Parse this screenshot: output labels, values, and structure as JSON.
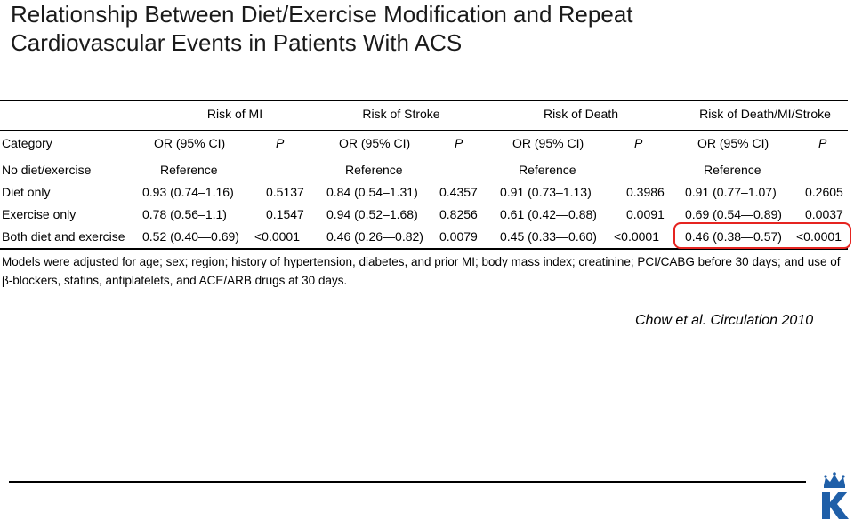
{
  "slide": {
    "title_line1": "Relationship Between Diet/Exercise Modification and Repeat",
    "title_line2": "Cardiovascular Events in Patients With ACS"
  },
  "table": {
    "group_headers": [
      "Risk of MI",
      "Risk of Stroke",
      "Risk of Death",
      "Risk of Death/MI/Stroke"
    ],
    "column_headers": {
      "category": "Category",
      "or": "OR (95% CI)",
      "p": "P"
    },
    "rows": [
      {
        "category": "No diet/exercise",
        "cells": [
          "Reference",
          "",
          "Reference",
          "",
          "Reference",
          "",
          "Reference",
          ""
        ]
      },
      {
        "category": "Diet only",
        "cells": [
          "0.93 (0.74–1.16)",
          "0.5137",
          "0.84 (0.54–1.31)",
          "0.4357",
          "0.91 (0.73–1.13)",
          "0.3986",
          "0.91 (0.77–1.07)",
          "0.2605"
        ]
      },
      {
        "category": "Exercise only",
        "cells": [
          "0.78 (0.56–1.1)",
          "0.1547",
          "0.94 (0.52–1.68)",
          "0.8256",
          "0.61 (0.42—0.88)",
          "0.0091",
          "0.69 (0.54—0.89)",
          "0.0037"
        ]
      },
      {
        "category": "Both diet and exercise",
        "cells": [
          "0.52 (0.40—0.69)",
          "<0.0001",
          "0.46 (0.26—0.82)",
          "0.0079",
          "0.45 (0.33—0.60)",
          "<0.0001",
          "0.46 (0.38—0.57)",
          "<0.0001"
        ]
      }
    ],
    "footnote_line1": "Models were adjusted for age; sex; region; history of hypertension, diabetes, and prior MI; body mass index; creatinine; PCI/CABG before 30 days; and use of",
    "footnote_line2": "β-blockers, statins, antiplatelets, and ACE/ARB drugs at 30 days."
  },
  "citation": "Chow et al. Circulation 2010",
  "colors": {
    "highlight": "#e52420",
    "logo": "#1f5fa8"
  },
  "icons": {
    "logo": "crown-k-logo"
  }
}
